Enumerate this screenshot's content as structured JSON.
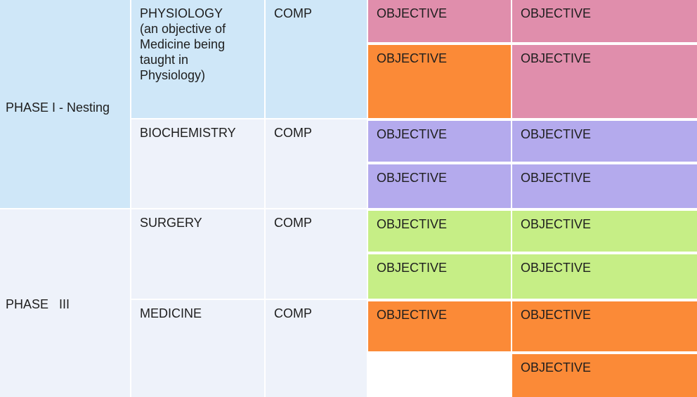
{
  "table": {
    "rows": [
      {
        "phase": "PHASE I - Nesting",
        "subjects": [
          {
            "name": "PHYSIOLOGY",
            "note": "(an objective of Medicine being taught in Physiology)",
            "comp": "COMP",
            "objectives": [
              "OBJECTIVE",
              "OBJECTIVE",
              "OBJECTIVE",
              "OBJECTIVE"
            ]
          },
          {
            "name": "BIOCHEMISTRY",
            "comp": "COMP",
            "objectives": [
              "OBJECTIVE",
              "OBJECTIVE",
              "OBJECTIVE",
              "OBJECTIVE"
            ]
          }
        ]
      },
      {
        "phase": "PHASE   III",
        "subjects": [
          {
            "name": "SURGERY",
            "comp": "COMP",
            "objectives": [
              "OBJECTIVE",
              "OBJECTIVE",
              "OBJECTIVE",
              "OBJECTIVE"
            ]
          },
          {
            "name": "MEDICINE",
            "comp": "COMP",
            "objectives": [
              "OBJECTIVE",
              "OBJECTIVE",
              "OBJECTIVE"
            ]
          }
        ]
      }
    ]
  }
}
